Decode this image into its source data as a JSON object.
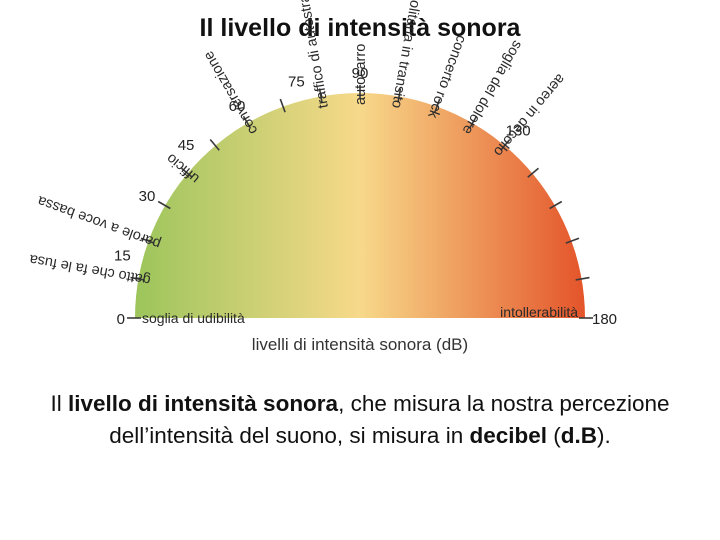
{
  "slide": {
    "title": "Il livello di intensità sonora",
    "caption": {
      "part1": "Il ",
      "bold1": "livello di intensità sonora",
      "part2": ", che misura la nostra percezione dell’intensità del suono, si misura in ",
      "bold2": "decibel",
      "part3": " (",
      "bold3": "d.B",
      "part4": ")."
    }
  },
  "gauge": {
    "axis_title": "livelli di intensità sonora (dB)",
    "min": 0,
    "max": 180,
    "colors": {
      "low": "#9cc55c",
      "mid": "#f7d98a",
      "high": "#e4542a"
    },
    "scale_labels": [
      {
        "value": 0,
        "text": "0"
      },
      {
        "value": 15,
        "text": "15"
      },
      {
        "value": 30,
        "text": "30"
      },
      {
        "value": 45,
        "text": "45"
      },
      {
        "value": 60,
        "text": "60"
      },
      {
        "value": 75,
        "text": "75"
      },
      {
        "value": 90,
        "text": "90"
      },
      {
        "value": 130,
        "text": "130"
      },
      {
        "value": 180,
        "text": "180"
      }
    ],
    "tick_values": [
      0,
      10,
      20,
      30,
      40,
      50,
      60,
      70,
      80,
      90,
      100,
      110,
      120,
      130,
      140,
      150,
      160,
      170,
      180
    ],
    "sources": [
      {
        "value": 0,
        "text": "soglia di udibilità"
      },
      {
        "value": 10,
        "text": "gatto che fa le fusa"
      },
      {
        "value": 20,
        "text": "parole a voce bassa"
      },
      {
        "value": 40,
        "text": "ufficio"
      },
      {
        "value": 60,
        "text": "conversazione"
      },
      {
        "value": 80,
        "text": "traffico di autostrada"
      },
      {
        "value": 90,
        "text": "autocarro"
      },
      {
        "value": 100,
        "text": "metropolitana in transito"
      },
      {
        "value": 110,
        "text": "concerto rock"
      },
      {
        "value": 120,
        "text": "soglia del dolore"
      },
      {
        "value": 130,
        "text": "aereo in decollo"
      },
      {
        "value": 180,
        "text": "intollerabilità"
      }
    ]
  }
}
